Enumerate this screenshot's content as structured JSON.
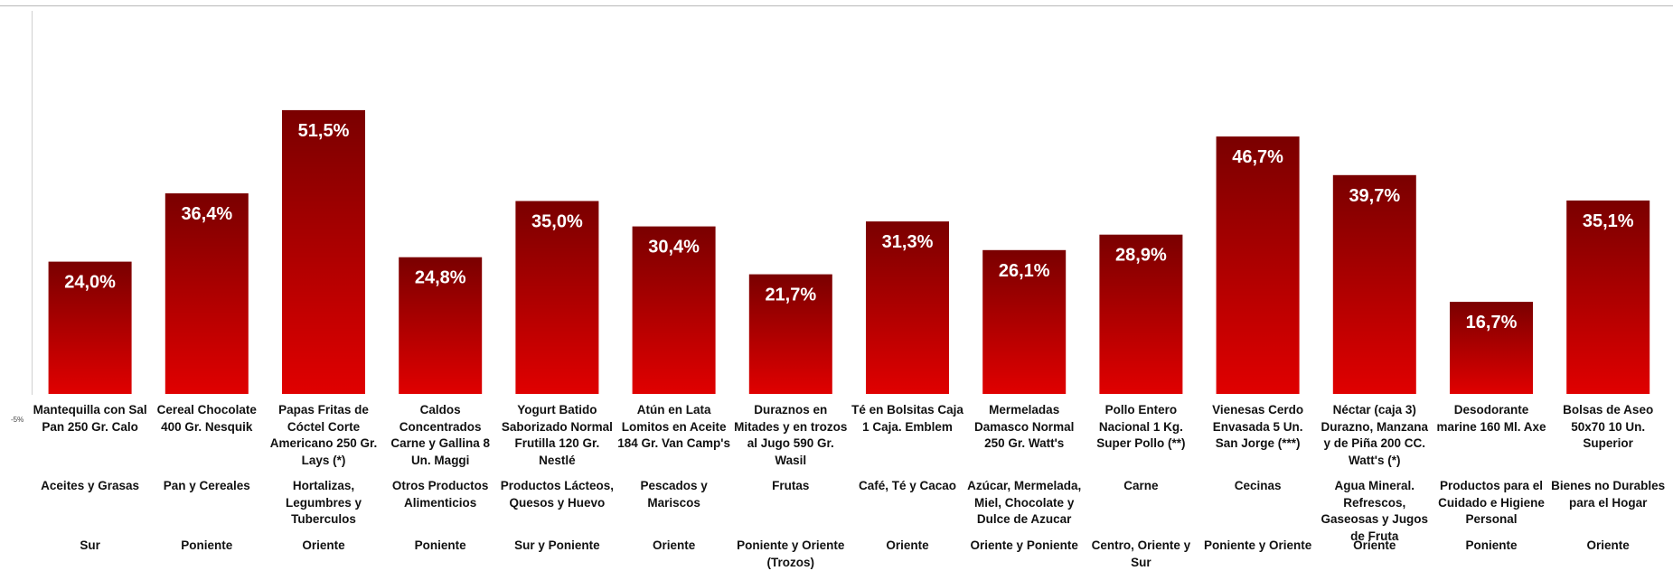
{
  "chart_data": {
    "type": "bar",
    "title": "",
    "xlabel": "",
    "ylabel": "",
    "ylim": [
      -5,
      60
    ],
    "axis_min_label": "-5%",
    "bar_color_top": "#7a0000",
    "bar_color_bottom": "#e00000",
    "value_label_color": "#ffffff",
    "categories": [
      {
        "product": "Mantequilla con Sal Pan 250 Gr. Calo",
        "category": "Aceites y Grasas",
        "zone": "Sur"
      },
      {
        "product": "Cereal Chocolate 400 Gr. Nesquik",
        "category": "Pan y Cereales",
        "zone": "Poniente"
      },
      {
        "product": "Papas Fritas de Cóctel Corte Americano 250 Gr. Lays (*)",
        "category": "Hortalizas, Legumbres y Tuberculos",
        "zone": "Oriente"
      },
      {
        "product": "Caldos Concentrados Carne y Gallina 8 Un. Maggi",
        "category": "Otros Productos Alimenticios",
        "zone": "Poniente"
      },
      {
        "product": "Yogurt Batido Saborizado Normal Frutilla 120 Gr. Nestlé",
        "category": "Productos Lácteos, Quesos y Huevo",
        "zone": "Sur y Poniente"
      },
      {
        "product": "Atún en Lata Lomitos en Aceite 184 Gr. Van Camp's",
        "category": "Pescados y Mariscos",
        "zone": "Oriente"
      },
      {
        "product": "Duraznos en Mitades y en trozos al Jugo 590 Gr. Wasil",
        "category": "Frutas",
        "zone": "Poniente y Oriente (Trozos)"
      },
      {
        "product": "Té en Bolsitas Caja 1 Caja. Emblem",
        "category": "Café, Té y Cacao",
        "zone": "Oriente"
      },
      {
        "product": "Mermeladas Damasco Normal 250 Gr. Watt's",
        "category": "Azúcar, Mermelada, Miel, Chocolate y Dulce de Azucar",
        "zone": "Oriente y Poniente"
      },
      {
        "product": "Pollo Entero Nacional 1 Kg. Super Pollo (**)",
        "category": "Carne",
        "zone": "Centro, Oriente y Sur"
      },
      {
        "product": "Vienesas Cerdo Envasada 5 Un. San Jorge (***)",
        "category": "Cecinas",
        "zone": "Poniente y Oriente"
      },
      {
        "product": "Néctar (caja 3) Durazno, Manzana y de Piña 200 CC. Watt's (*)",
        "category": "Agua Mineral. Refrescos, Gaseosas y Jugos de Fruta",
        "zone": "Oriente"
      },
      {
        "product": "Desodorante marine 160 Ml. Axe",
        "category": "Productos para el Cuidado e Higiene Personal",
        "zone": "Poniente"
      },
      {
        "product": "Bolsas de Aseo 50x70 10 Un. Superior",
        "category": "Bienes no Durables para el Hogar",
        "zone": "Oriente"
      }
    ],
    "values": [
      24.0,
      36.4,
      51.5,
      24.8,
      35.0,
      30.4,
      21.7,
      31.3,
      26.1,
      28.9,
      46.7,
      39.7,
      16.7,
      35.1
    ],
    "value_labels": [
      "24,0%",
      "36,4%",
      "51,5%",
      "24,8%",
      "35,0%",
      "30,4%",
      "21,7%",
      "31,3%",
      "26,1%",
      "28,9%",
      "46,7%",
      "39,7%",
      "16,7%",
      "35,1%"
    ]
  }
}
